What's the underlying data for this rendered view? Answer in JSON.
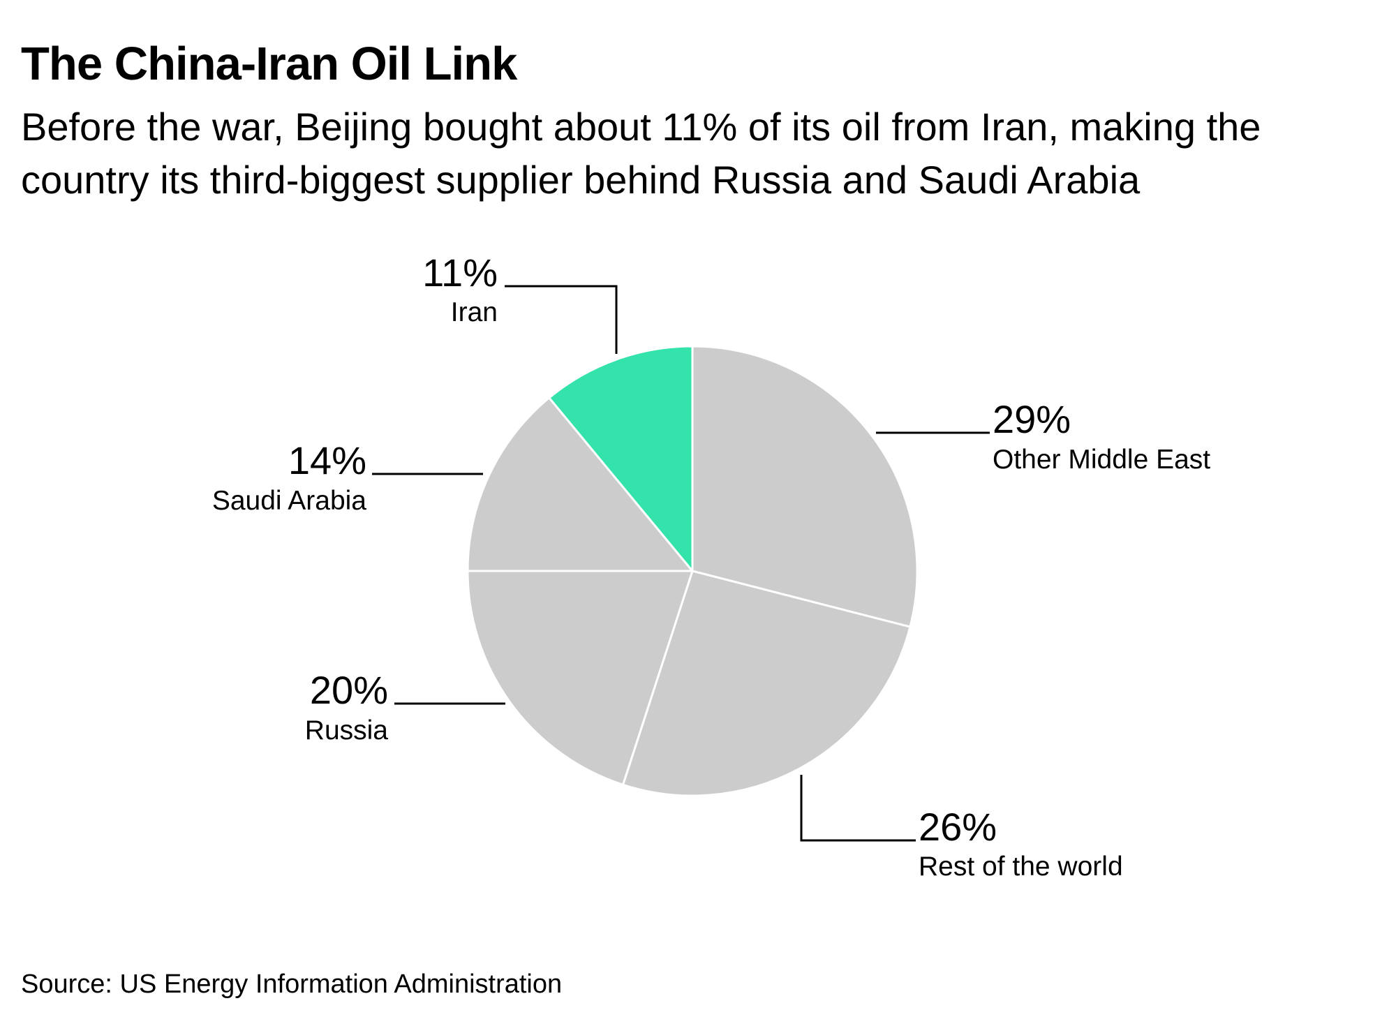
{
  "header": {
    "title": "The China-Iran Oil Link",
    "subtitle": "Before the war, Beijing bought about 11% of its oil from Iran, making the country its third-biggest supplier behind Russia and Saudi Arabia"
  },
  "footer": {
    "source": "Source: US Energy Information Administration"
  },
  "chart_data": {
    "type": "pie",
    "title": "The China-Iran Oil Link",
    "subtitle": "Before the war, Beijing bought about 11% of its oil from Iran, making the country its third-biggest supplier behind Russia and Saudi Arabia",
    "direction": "clockwise from top",
    "slices": [
      {
        "id": "other-middle-east",
        "label": "Other Middle East",
        "value": 29,
        "value_label": "29%",
        "color": "#cccccc"
      },
      {
        "id": "rest-of-the-world",
        "label": "Rest of the world",
        "value": 26,
        "value_label": "26%",
        "color": "#cccccc"
      },
      {
        "id": "russia",
        "label": "Russia",
        "value": 20,
        "value_label": "20%",
        "color": "#cccccc"
      },
      {
        "id": "saudi-arabia",
        "label": "Saudi Arabia",
        "value": 14,
        "value_label": "14%",
        "color": "#cccccc"
      },
      {
        "id": "iran",
        "label": "Iran",
        "value": 11,
        "value_label": "11%",
        "color": "#33e3ab",
        "highlight": true
      }
    ],
    "slice_border_color": "#ffffff",
    "leader_line_color": "#000000"
  }
}
